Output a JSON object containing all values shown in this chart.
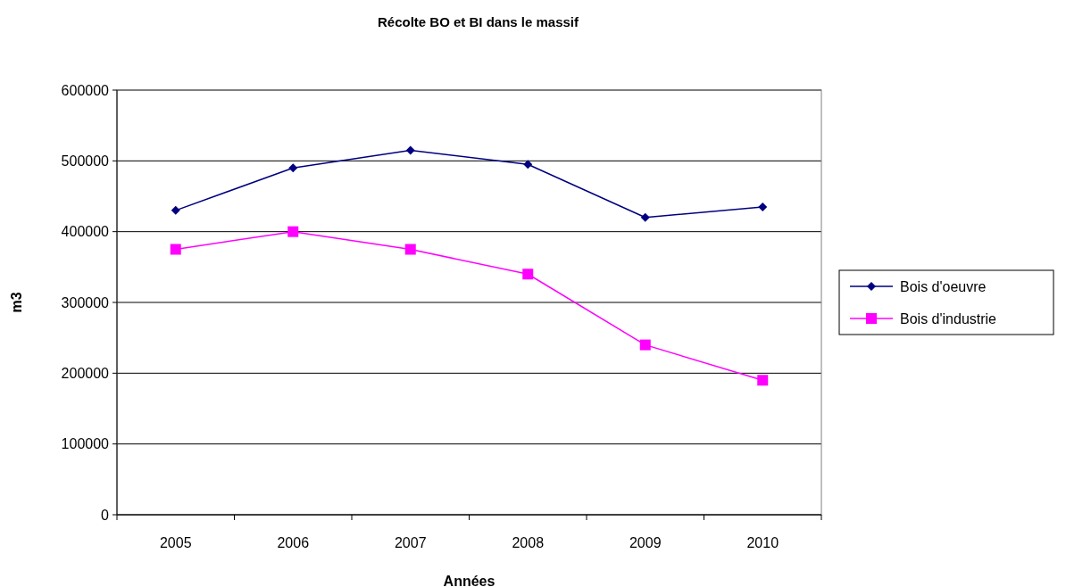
{
  "chart_data": {
    "type": "line",
    "title": "Récolte BO et BI dans le massif",
    "xlabel": "Années",
    "ylabel": "m3",
    "categories": [
      "2005",
      "2006",
      "2007",
      "2008",
      "2009",
      "2010"
    ],
    "series": [
      {
        "name": "Bois d'oeuvre",
        "color": "#000080",
        "marker": "diamond",
        "values": [
          430000,
          490000,
          515000,
          495000,
          420000,
          435000
        ]
      },
      {
        "name": "Bois d'industrie",
        "color": "#ff00ff",
        "marker": "square",
        "values": [
          375000,
          400000,
          375000,
          340000,
          240000,
          190000
        ]
      }
    ],
    "ylim": [
      0,
      600000
    ],
    "yticks": [
      0,
      100000,
      200000,
      300000,
      400000,
      500000,
      600000
    ],
    "grid": "y",
    "legend": "right"
  }
}
